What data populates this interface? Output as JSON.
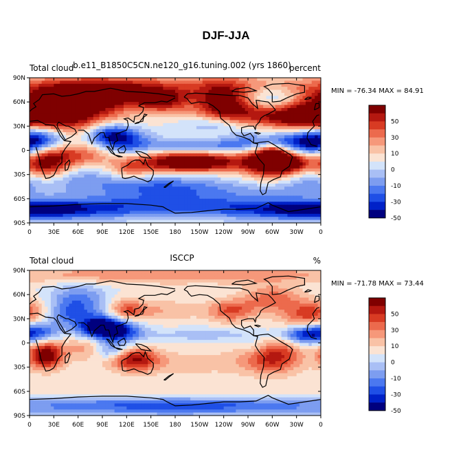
{
  "figure_title": "DJF-JJA",
  "colors": {
    "palette": [
      "#00007f",
      "#0021c8",
      "#1f4fe6",
      "#4b78f0",
      "#7d9df0",
      "#a9bff5",
      "#d3e3fa",
      "#fbe3d3",
      "#f9c2a6",
      "#f6987a",
      "#ec6a4d",
      "#d83b23",
      "#b41810",
      "#7f0000"
    ],
    "coast": "#000000"
  },
  "chart_data": [
    {
      "type": "heatmap",
      "title_left": "Total cloud",
      "title_center": "b.e11_B1850C5CN.ne120_g16.tuning.002 (yrs 1860)",
      "title_right": "percent",
      "stats": "MIN = -76.34  MAX =  84.91",
      "xticks": [
        "0",
        "30E",
        "60E",
        "90E",
        "120E",
        "150E",
        "180",
        "150W",
        "120W",
        "90W",
        "60W",
        "30W",
        "0"
      ],
      "yticks": [
        "90N",
        "60N",
        "30N",
        "0",
        "30S",
        "60S",
        "90S"
      ],
      "xlim": [
        0,
        360
      ],
      "ylim": [
        -90,
        90
      ],
      "colorbar_levels": [
        -60,
        -50,
        -40,
        -30,
        -20,
        -10,
        -5,
        0,
        5,
        10,
        20,
        30,
        40,
        50,
        60
      ],
      "colorbar_labels": [
        "50",
        "30",
        "10",
        "0",
        "-10",
        "-30",
        "-50"
      ],
      "centers": [
        [
          50,
          55,
          60,
          18,
          60
        ],
        [
          20,
          40,
          35,
          15,
          70
        ],
        [
          10,
          15,
          25,
          18,
          -70
        ],
        [
          330,
          10,
          30,
          10,
          -55
        ],
        [
          100,
          20,
          20,
          10,
          -50
        ],
        [
          120,
          10,
          25,
          12,
          -40
        ],
        [
          20,
          -15,
          20,
          15,
          80
        ],
        [
          300,
          -15,
          25,
          15,
          85
        ],
        [
          180,
          -15,
          40,
          10,
          55
        ],
        [
          220,
          -15,
          40,
          8,
          50
        ],
        [
          320,
          -15,
          20,
          8,
          45
        ],
        [
          265,
          10,
          25,
          8,
          -35
        ],
        [
          250,
          30,
          40,
          8,
          -30
        ],
        [
          240,
          55,
          25,
          20,
          70
        ],
        [
          290,
          40,
          30,
          12,
          45
        ],
        [
          340,
          40,
          25,
          10,
          45
        ],
        [
          20,
          -35,
          60,
          10,
          -20
        ],
        [
          150,
          -40,
          60,
          12,
          -30
        ],
        [
          200,
          -50,
          80,
          8,
          -20
        ],
        [
          180,
          -70,
          180,
          10,
          -45
        ],
        [
          180,
          80,
          180,
          10,
          25
        ],
        [
          140,
          55,
          25,
          10,
          -25
        ],
        [
          200,
          5,
          40,
          6,
          -35
        ],
        [
          60,
          -5,
          30,
          10,
          40
        ],
        [
          0,
          -75,
          60,
          8,
          -50
        ],
        [
          300,
          -5,
          10,
          6,
          55
        ],
        [
          125,
          -25,
          20,
          10,
          35
        ],
        [
          160,
          60,
          25,
          10,
          60
        ],
        [
          90,
          70,
          60,
          12,
          50
        ],
        [
          230,
          35,
          20,
          8,
          -20
        ],
        [
          300,
          65,
          25,
          10,
          -30
        ],
        [
          340,
          -45,
          40,
          10,
          -15
        ]
      ]
    },
    {
      "type": "heatmap",
      "title_left": "Total cloud",
      "title_center": "ISCCP",
      "title_right": "%",
      "stats": "MIN = -71.78  MAX =  73.44",
      "xticks": [
        "0",
        "30E",
        "60E",
        "90E",
        "120E",
        "150E",
        "180",
        "150W",
        "120W",
        "90W",
        "60W",
        "30W",
        "0"
      ],
      "yticks": [
        "90N",
        "60N",
        "30N",
        "0",
        "30S",
        "60S",
        "90S"
      ],
      "xlim": [
        0,
        360
      ],
      "ylim": [
        -90,
        90
      ],
      "colorbar_levels": [
        -60,
        -50,
        -40,
        -30,
        -20,
        -10,
        -5,
        0,
        5,
        10,
        20,
        30,
        40,
        50,
        60
      ],
      "colorbar_labels": [
        "50",
        "30",
        "10",
        "0",
        "-10",
        "-30",
        "-50"
      ],
      "centers": [
        [
          60,
          50,
          25,
          15,
          -40
        ],
        [
          85,
          20,
          20,
          10,
          -65
        ],
        [
          110,
          15,
          20,
          10,
          -55
        ],
        [
          20,
          -15,
          15,
          12,
          75
        ],
        [
          300,
          -15,
          25,
          15,
          55
        ],
        [
          130,
          -20,
          20,
          10,
          55
        ],
        [
          10,
          15,
          20,
          10,
          -45
        ],
        [
          340,
          10,
          20,
          8,
          -50
        ],
        [
          200,
          -25,
          80,
          12,
          15
        ],
        [
          180,
          -60,
          180,
          8,
          10
        ],
        [
          180,
          -78,
          180,
          8,
          -45
        ],
        [
          350,
          35,
          25,
          12,
          50
        ],
        [
          250,
          40,
          20,
          10,
          40
        ],
        [
          300,
          55,
          25,
          12,
          35
        ],
        [
          160,
          40,
          40,
          10,
          20
        ],
        [
          120,
          40,
          15,
          10,
          35
        ],
        [
          180,
          85,
          180,
          8,
          30
        ],
        [
          70,
          -5,
          20,
          10,
          25
        ],
        [
          280,
          -5,
          15,
          10,
          -20
        ],
        [
          220,
          10,
          60,
          6,
          -15
        ],
        [
          40,
          35,
          20,
          8,
          -20
        ],
        [
          100,
          -10,
          15,
          8,
          -35
        ]
      ]
    }
  ],
  "coast_lines": [
    [
      [
        350,
        36
      ],
      [
        355,
        43
      ],
      [
        358,
        44
      ],
      [
        0,
        48
      ],
      [
        3,
        51
      ],
      [
        8,
        54
      ],
      [
        5,
        58
      ],
      [
        12,
        63
      ],
      [
        16,
        69
      ],
      [
        30,
        70
      ],
      [
        40,
        67
      ],
      [
        50,
        68
      ],
      [
        60,
        70
      ],
      [
        70,
        73
      ],
      [
        80,
        73
      ],
      [
        100,
        77
      ],
      [
        120,
        73
      ],
      [
        140,
        72
      ],
      [
        160,
        70
      ],
      [
        180,
        67
      ]
    ],
    [
      [
        350,
        36
      ],
      [
        352,
        30
      ],
      [
        344,
        22
      ],
      [
        343,
        15
      ],
      [
        348,
        7
      ],
      [
        355,
        5
      ],
      [
        8,
        4
      ],
      [
        10,
        -3
      ],
      [
        12,
        -10
      ],
      [
        14,
        -20
      ],
      [
        18,
        -30
      ],
      [
        20,
        -35
      ],
      [
        25,
        -34
      ],
      [
        30,
        -31
      ],
      [
        33,
        -25
      ],
      [
        35,
        -20
      ],
      [
        40,
        -15
      ],
      [
        40,
        -5
      ],
      [
        44,
        2
      ],
      [
        51,
        11
      ],
      [
        43,
        12
      ],
      [
        38,
        18
      ],
      [
        33,
        28
      ],
      [
        30,
        31
      ],
      [
        20,
        32
      ],
      [
        10,
        37
      ],
      [
        0,
        36
      ],
      [
        350,
        36
      ]
    ],
    [
      [
        34,
        32
      ],
      [
        36,
        35
      ],
      [
        45,
        30
      ],
      [
        48,
        30
      ],
      [
        56,
        26
      ],
      [
        58,
        22
      ],
      [
        52,
        17
      ],
      [
        44,
        13
      ],
      [
        40,
        20
      ],
      [
        35,
        28
      ],
      [
        34,
        32
      ]
    ],
    [
      [
        60,
        25
      ],
      [
        67,
        25
      ],
      [
        73,
        20
      ],
      [
        77,
        8
      ],
      [
        80,
        15
      ],
      [
        88,
        22
      ],
      [
        92,
        22
      ],
      [
        94,
        16
      ],
      [
        98,
        16
      ],
      [
        100,
        8
      ],
      [
        103,
        1
      ],
      [
        105,
        10
      ],
      [
        109,
        12
      ],
      [
        107,
        20
      ],
      [
        112,
        22
      ],
      [
        120,
        25
      ],
      [
        122,
        31
      ],
      [
        121,
        37
      ],
      [
        117,
        39
      ],
      [
        121,
        40
      ],
      [
        122,
        40
      ],
      [
        129,
        35
      ],
      [
        130,
        42
      ],
      [
        135,
        43
      ],
      [
        140,
        48
      ],
      [
        141,
        53
      ],
      [
        135,
        55
      ],
      [
        142,
        59
      ],
      [
        155,
        59
      ],
      [
        163,
        61
      ],
      [
        170,
        60
      ],
      [
        180,
        65
      ]
    ],
    [
      [
        130,
        33
      ],
      [
        132,
        34
      ],
      [
        135,
        35
      ],
      [
        140,
        36
      ],
      [
        141,
        41
      ],
      [
        145,
        44
      ],
      [
        142,
        45
      ],
      [
        140,
        40
      ],
      [
        135,
        34
      ],
      [
        130,
        33
      ]
    ],
    [
      [
        114,
        -22
      ],
      [
        114,
        -26
      ],
      [
        115,
        -34
      ],
      [
        118,
        -35
      ],
      [
        123,
        -34
      ],
      [
        129,
        -32
      ],
      [
        135,
        -35
      ],
      [
        139,
        -36
      ],
      [
        146,
        -39
      ],
      [
        150,
        -37
      ],
      [
        153,
        -30
      ],
      [
        153,
        -25
      ],
      [
        146,
        -19
      ],
      [
        143,
        -11
      ],
      [
        141,
        -17
      ],
      [
        136,
        -12
      ],
      [
        131,
        -12
      ],
      [
        126,
        -14
      ],
      [
        122,
        -18
      ],
      [
        114,
        -22
      ]
    ],
    [
      [
        95,
        5
      ],
      [
        98,
        4
      ],
      [
        103,
        -2
      ],
      [
        106,
        -6
      ],
      [
        101,
        -3
      ],
      [
        97,
        3
      ],
      [
        95,
        5
      ]
    ],
    [
      [
        106,
        -6
      ],
      [
        111,
        -7
      ],
      [
        115,
        -8
      ],
      [
        110,
        -8
      ],
      [
        106,
        -6
      ]
    ],
    [
      [
        109,
        1
      ],
      [
        112,
        3
      ],
      [
        117,
        6
      ],
      [
        119,
        1
      ],
      [
        117,
        -3
      ],
      [
        111,
        -3
      ],
      [
        109,
        1
      ]
    ],
    [
      [
        131,
        -1
      ],
      [
        138,
        -2
      ],
      [
        145,
        -5
      ],
      [
        150,
        -10
      ],
      [
        143,
        -9
      ],
      [
        138,
        -8
      ],
      [
        131,
        -1
      ]
    ],
    [
      [
        166,
        -46
      ],
      [
        172,
        -41
      ],
      [
        178,
        -38
      ],
      [
        174,
        -41
      ],
      [
        168,
        -46
      ],
      [
        166,
        -46
      ]
    ],
    [
      [
        44,
        -25
      ],
      [
        47,
        -24
      ],
      [
        50,
        -15
      ],
      [
        49,
        -12
      ],
      [
        44,
        -17
      ],
      [
        44,
        -25
      ]
    ],
    [
      [
        191,
        66
      ],
      [
        195,
        70
      ],
      [
        205,
        71
      ],
      [
        220,
        70
      ],
      [
        235,
        69
      ],
      [
        250,
        68
      ],
      [
        260,
        68
      ],
      [
        270,
        65
      ],
      [
        275,
        58
      ],
      [
        282,
        52
      ],
      [
        280,
        62
      ],
      [
        295,
        60
      ],
      [
        300,
        55
      ],
      [
        304,
        50
      ],
      [
        295,
        45
      ],
      [
        290,
        43
      ],
      [
        286,
        40
      ],
      [
        284,
        35
      ],
      [
        280,
        31
      ],
      [
        279,
        26
      ],
      [
        277,
        30
      ],
      [
        270,
        30
      ],
      [
        262,
        28
      ],
      [
        262,
        22
      ],
      [
        265,
        18
      ],
      [
        273,
        21
      ],
      [
        277,
        16
      ],
      [
        277,
        9
      ],
      [
        281,
        9
      ],
      [
        285,
        10
      ],
      [
        295,
        11
      ],
      [
        302,
        7
      ],
      [
        310,
        2
      ],
      [
        322,
        -5
      ],
      [
        325,
        -8
      ],
      [
        321,
        -20
      ],
      [
        312,
        -26
      ],
      [
        310,
        -33
      ],
      [
        302,
        -36
      ],
      [
        295,
        -40
      ],
      [
        293,
        -48
      ],
      [
        292,
        -53
      ],
      [
        288,
        -55
      ],
      [
        285,
        -50
      ],
      [
        286,
        -40
      ],
      [
        289,
        -30
      ],
      [
        290,
        -18
      ],
      [
        283,
        -10
      ],
      [
        279,
        -3
      ],
      [
        280,
        1
      ],
      [
        282,
        8
      ],
      [
        277,
        9
      ],
      [
        272,
        13
      ],
      [
        265,
        16
      ],
      [
        255,
        19
      ],
      [
        250,
        24
      ],
      [
        247,
        31
      ],
      [
        242,
        35
      ],
      [
        236,
        40
      ],
      [
        235,
        48
      ],
      [
        227,
        55
      ],
      [
        220,
        59
      ],
      [
        210,
        60
      ],
      [
        200,
        58
      ],
      [
        197,
        61
      ],
      [
        195,
        64
      ],
      [
        191,
        66
      ]
    ],
    [
      [
        300,
        60
      ],
      [
        310,
        61
      ],
      [
        318,
        65
      ],
      [
        330,
        70
      ],
      [
        340,
        72
      ],
      [
        340,
        80
      ],
      [
        320,
        83
      ],
      [
        300,
        82
      ],
      [
        290,
        79
      ],
      [
        295,
        76
      ],
      [
        300,
        70
      ],
      [
        300,
        60
      ]
    ],
    [
      [
        340,
        63
      ],
      [
        344,
        66
      ],
      [
        348,
        65
      ],
      [
        346,
        64
      ],
      [
        340,
        63
      ]
    ],
    [
      [
        352,
        50
      ],
      [
        358,
        53
      ],
      [
        358,
        58
      ],
      [
        354,
        58
      ],
      [
        353,
        55
      ],
      [
        352,
        50
      ]
    ],
    [
      [
        278,
        22
      ],
      [
        282,
        22
      ],
      [
        285,
        21
      ],
      [
        283,
        20
      ],
      [
        278,
        22
      ]
    ],
    [
      [
        250,
        73
      ],
      [
        265,
        72
      ],
      [
        280,
        74
      ],
      [
        270,
        78
      ],
      [
        255,
        76
      ],
      [
        250,
        73
      ]
    ],
    [
      [
        0,
        -70
      ],
      [
        30,
        -69
      ],
      [
        60,
        -67
      ],
      [
        90,
        -66
      ],
      [
        120,
        -66
      ],
      [
        150,
        -68
      ],
      [
        165,
        -70
      ],
      [
        170,
        -73
      ],
      [
        180,
        -78
      ],
      [
        200,
        -77
      ],
      [
        220,
        -75
      ],
      [
        240,
        -73
      ],
      [
        260,
        -73
      ],
      [
        280,
        -72
      ],
      [
        295,
        -65
      ],
      [
        300,
        -68
      ],
      [
        320,
        -76
      ],
      [
        340,
        -73
      ],
      [
        360,
        -70
      ]
    ]
  ]
}
